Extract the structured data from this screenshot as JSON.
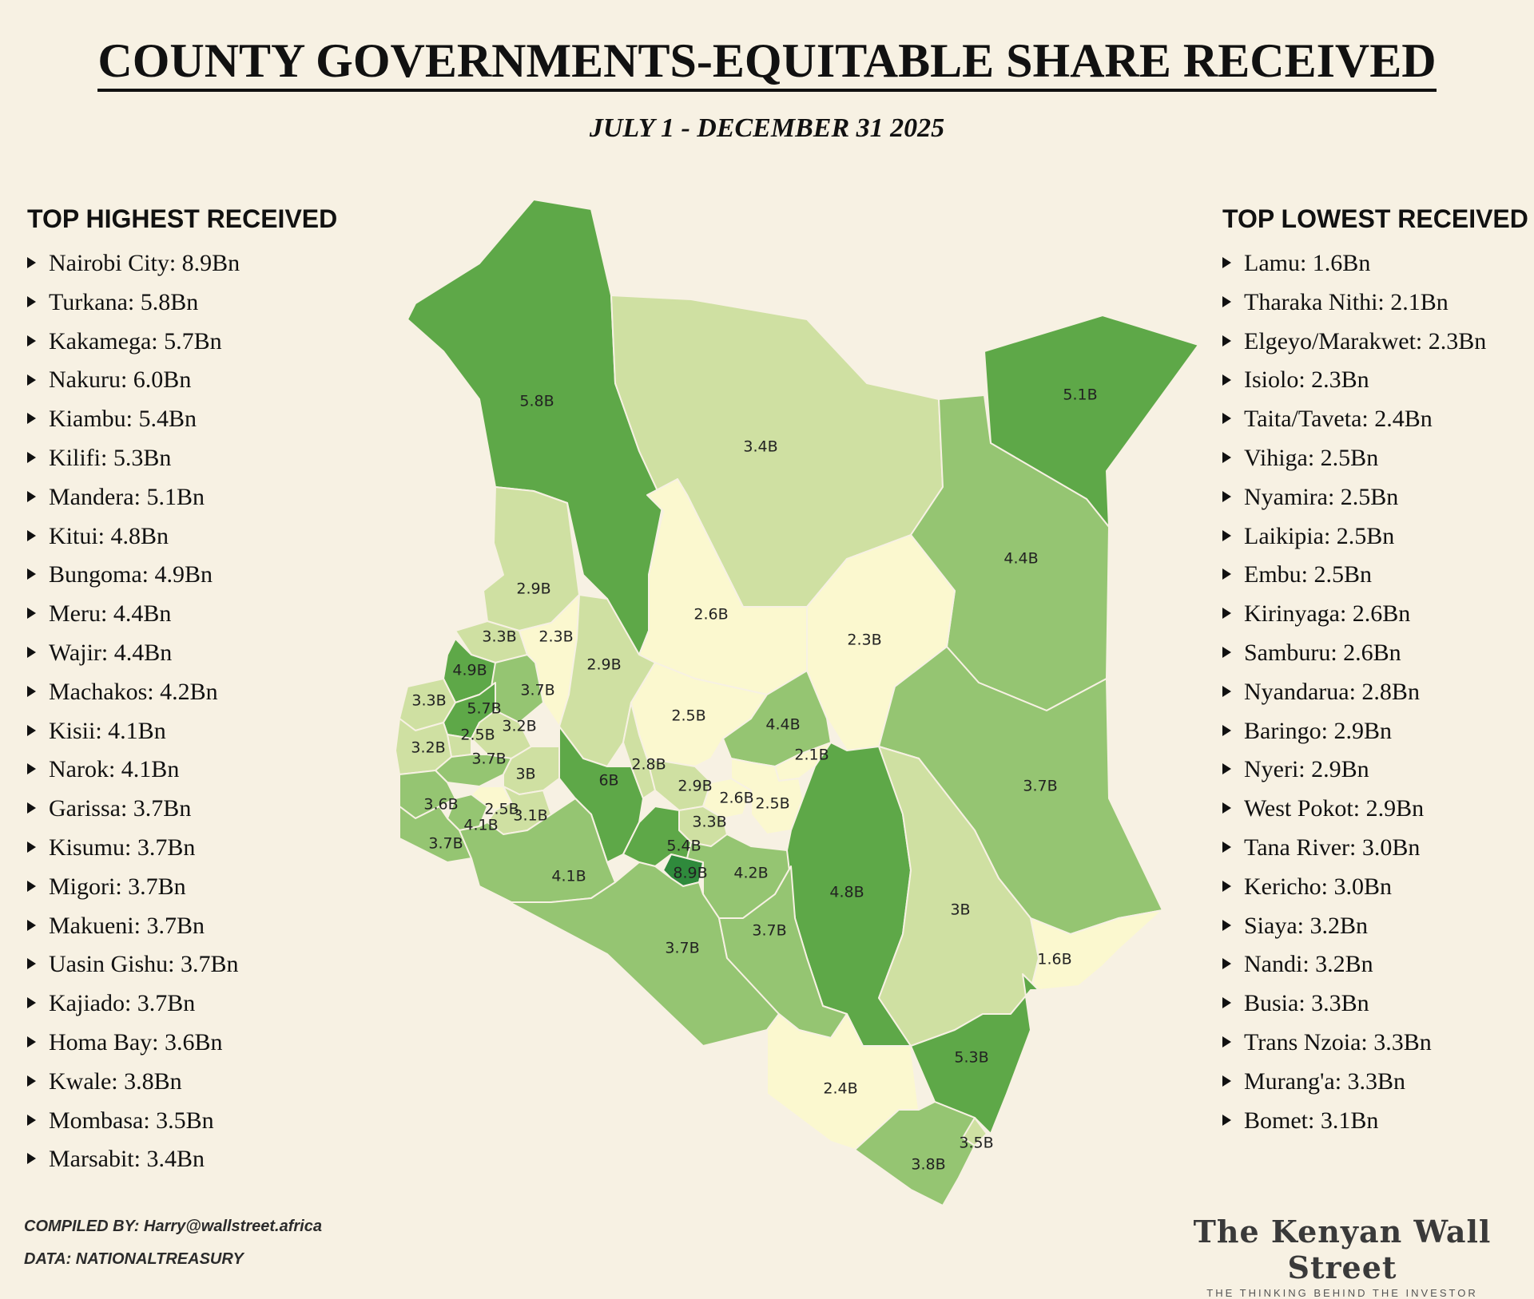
{
  "title": "COUNTY GOVERNMENTS-EQUITABLE SHARE RECEIVED",
  "subtitle": "JULY 1 - DECEMBER 31 2025",
  "top_highest": {
    "heading": "TOP HIGHEST RECEIVED",
    "items": [
      "Nairobi City: 8.9Bn",
      "Turkana: 5.8Bn",
      "Kakamega: 5.7Bn",
      "Nakuru: 6.0Bn",
      "Kiambu: 5.4Bn",
      "Kilifi: 5.3Bn",
      "Mandera: 5.1Bn",
      "Kitui: 4.8Bn",
      "Bungoma: 4.9Bn",
      "Meru: 4.4Bn",
      "Wajir: 4.4Bn",
      "Machakos: 4.2Bn",
      "Kisii: 4.1Bn",
      "Narok: 4.1Bn",
      "Garissa: 3.7Bn",
      "Kisumu: 3.7Bn",
      "Migori: 3.7Bn",
      "Makueni: 3.7Bn",
      "Uasin Gishu: 3.7Bn",
      "Kajiado: 3.7Bn",
      "Homa Bay: 3.6Bn",
      "Kwale: 3.8Bn",
      "Mombasa: 3.5Bn",
      "Marsabit: 3.4Bn"
    ]
  },
  "top_lowest": {
    "heading": "TOP LOWEST RECEIVED",
    "items": [
      "Lamu: 1.6Bn",
      "Tharaka Nithi: 2.1Bn",
      "Elgeyo/Marakwet: 2.3Bn",
      "Isiolo: 2.3Bn",
      "Taita/Taveta: 2.4Bn",
      "Vihiga: 2.5Bn",
      "Nyamira: 2.5Bn",
      "Laikipia: 2.5Bn",
      "Embu: 2.5Bn",
      "Kirinyaga: 2.6Bn",
      "Samburu: 2.6Bn",
      "Nyandarua: 2.8Bn",
      "Baringo: 2.9Bn",
      "Nyeri: 2.9Bn",
      "West Pokot: 2.9Bn",
      "Tana River: 3.0Bn",
      "Kericho: 3.0Bn",
      "Siaya: 3.2Bn",
      "Nandi: 3.2Bn",
      "Busia: 3.3Bn",
      "Trans Nzoia: 3.3Bn",
      "Murang'a: 3.3Bn",
      "Bomet: 3.1Bn"
    ]
  },
  "map": {
    "color_scale": [
      "#fbf8cf",
      "#cfe0a2",
      "#95c572",
      "#5ea848",
      "#2f8a3c"
    ],
    "labels": {
      "turkana": "5.8B",
      "marsabit": "3.4B",
      "mandera": "5.1B",
      "wajir": "4.4B",
      "west_pokot": "2.9B",
      "samburu": "2.6B",
      "isiolo": "2.3B",
      "trans_nzoia": "3.3B",
      "elgeyo_marakwet": "2.3B",
      "baringo": "2.9B",
      "bungoma": "4.9B",
      "uasin_gishu": "3.7B",
      "busia": "3.3B",
      "kakamega": "5.7B",
      "laikipia": "2.5B",
      "meru": "4.4B",
      "vihiga": "2.5B",
      "nandi": "3.2B",
      "siaya": "3.2B",
      "kisumu": "3.7B",
      "kericho": "3B",
      "nakuru": "6B",
      "nyandarua": "2.8B",
      "nyeri": "2.9B",
      "kirinyaga": "2.6B",
      "tharaka_nithi": "2.1B",
      "embu": "2.5B",
      "garissa": "3.7B",
      "homa_bay": "3.6B",
      "kisii": "4.1B",
      "nyamira": "2.5B",
      "bomet": "3.1B",
      "muranga": "3.3B",
      "migori": "3.7B",
      "narok": "4.1B",
      "kiambu": "5.4B",
      "nairobi": "8.9B",
      "machakos": "4.2B",
      "kitui": "4.8B",
      "tana_river": "3B",
      "kajiado": "3.7B",
      "makueni": "3.7B",
      "lamu": "1.6B",
      "kilifi": "5.3B",
      "taita_taveta": "2.4B",
      "mombasa": "3.5B",
      "kwale": "3.8B"
    }
  },
  "credits": {
    "compiled": "COMPILED BY: Harry@wallstreet.africa",
    "data": "DATA: NATIONALTREASURY"
  },
  "logo": {
    "name": "The Kenyan Wall Street",
    "tagline": "THE THINKING BEHIND THE INVESTOR"
  }
}
